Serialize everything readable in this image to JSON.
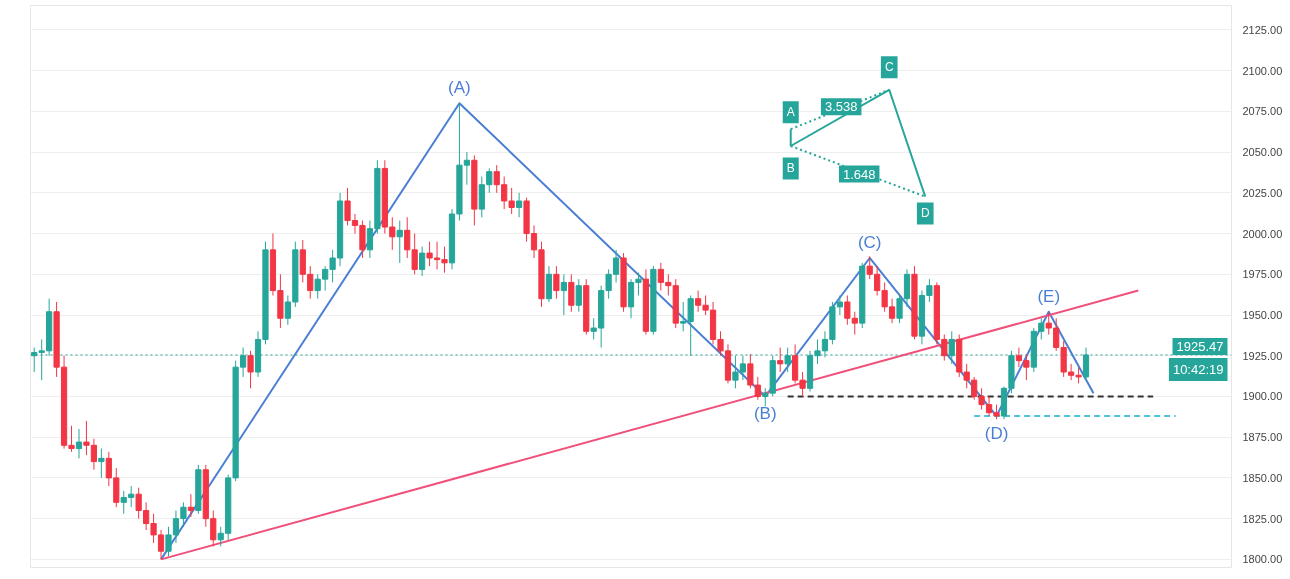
{
  "chart_data": {
    "type": "candlestick",
    "categories": [
      null,
      null,
      null,
      null,
      null,
      null,
      null,
      null,
      null,
      null,
      null,
      null,
      null,
      null,
      null,
      null,
      null,
      null,
      null,
      null,
      null,
      null,
      null,
      null,
      null,
      null,
      null,
      null,
      null,
      null,
      null,
      null,
      null,
      null,
      null,
      null,
      null,
      null,
      null,
      null,
      null,
      null,
      null,
      null,
      null,
      null,
      null,
      null,
      null,
      null,
      null,
      null,
      null,
      null,
      null,
      null,
      null,
      null,
      null,
      null,
      null,
      null,
      null,
      null,
      null,
      null,
      null,
      null,
      null,
      null,
      null,
      null,
      null,
      null,
      null,
      null,
      null,
      null,
      null,
      null,
      null,
      null,
      null,
      null,
      null,
      null,
      null,
      null,
      null,
      null,
      null,
      null,
      null,
      null,
      null,
      null,
      null,
      null,
      null,
      null,
      null,
      null,
      null,
      null,
      null,
      null,
      null,
      null,
      null,
      null,
      null,
      null,
      null,
      null,
      null,
      null,
      null,
      null,
      null,
      null,
      null,
      null,
      null,
      null,
      null,
      null,
      null,
      null,
      null,
      null,
      null,
      null,
      null,
      null,
      null,
      null,
      null,
      null,
      null,
      null,
      null,
      null,
      null,
      null,
      null,
      null,
      null,
      null,
      null,
      null,
      null,
      null,
      null,
      null,
      null,
      null,
      null,
      null,
      null,
      null,
      null
    ],
    "ohlc": [
      [
        1925,
        1930,
        1915,
        1927
      ],
      [
        1927,
        1935,
        1910,
        1928
      ],
      [
        1928,
        1960,
        1925,
        1952
      ],
      [
        1952,
        1958,
        1912,
        1918
      ],
      [
        1918,
        1925,
        1868,
        1870
      ],
      [
        1870,
        1882,
        1866,
        1868
      ],
      [
        1868,
        1880,
        1862,
        1872
      ],
      [
        1872,
        1885,
        1864,
        1870
      ],
      [
        1870,
        1874,
        1855,
        1860
      ],
      [
        1860,
        1868,
        1850,
        1862
      ],
      [
        1862,
        1866,
        1845,
        1850
      ],
      [
        1850,
        1856,
        1832,
        1835
      ],
      [
        1835,
        1842,
        1828,
        1838
      ],
      [
        1838,
        1845,
        1832,
        1840
      ],
      [
        1840,
        1844,
        1825,
        1830
      ],
      [
        1830,
        1835,
        1818,
        1822
      ],
      [
        1822,
        1828,
        1810,
        1815
      ],
      [
        1815,
        1818,
        1800,
        1805
      ],
      [
        1805,
        1820,
        1802,
        1815
      ],
      [
        1815,
        1830,
        1810,
        1825
      ],
      [
        1825,
        1835,
        1820,
        1832
      ],
      [
        1832,
        1840,
        1826,
        1830
      ],
      [
        1830,
        1858,
        1828,
        1855
      ],
      [
        1855,
        1858,
        1820,
        1825
      ],
      [
        1825,
        1830,
        1808,
        1812
      ],
      [
        1812,
        1820,
        1808,
        1816
      ],
      [
        1816,
        1852,
        1812,
        1850
      ],
      [
        1850,
        1922,
        1848,
        1918
      ],
      [
        1918,
        1930,
        1912,
        1925
      ],
      [
        1925,
        1928,
        1905,
        1915
      ],
      [
        1915,
        1940,
        1912,
        1935
      ],
      [
        1935,
        1995,
        1932,
        1990
      ],
      [
        1990,
        2000,
        1962,
        1965
      ],
      [
        1965,
        1975,
        1942,
        1948
      ],
      [
        1948,
        1962,
        1944,
        1958
      ],
      [
        1958,
        1995,
        1955,
        1990
      ],
      [
        1990,
        1996,
        1970,
        1975
      ],
      [
        1975,
        1980,
        1960,
        1965
      ],
      [
        1965,
        1975,
        1960,
        1972
      ],
      [
        1972,
        1980,
        1965,
        1978
      ],
      [
        1978,
        1990,
        1970,
        1985
      ],
      [
        1985,
        2025,
        1980,
        2020
      ],
      [
        2020,
        2028,
        2005,
        2008
      ],
      [
        2008,
        2012,
        2000,
        2005
      ],
      [
        2005,
        2008,
        1985,
        1990
      ],
      [
        1990,
        2008,
        1985,
        2003
      ],
      [
        2003,
        2045,
        2000,
        2040
      ],
      [
        2040,
        2045,
        2000,
        2004
      ],
      [
        2004,
        2010,
        1990,
        1998
      ],
      [
        1998,
        2008,
        1982,
        2002
      ],
      [
        2002,
        2010,
        1985,
        1990
      ],
      [
        1990,
        2000,
        1975,
        1978
      ],
      [
        1978,
        1992,
        1974,
        1988
      ],
      [
        1988,
        1995,
        1980,
        1985
      ],
      [
        1985,
        1995,
        1978,
        1984
      ],
      [
        1984,
        1992,
        1976,
        1982
      ],
      [
        1982,
        2015,
        1978,
        2012
      ],
      [
        2012,
        2080,
        2008,
        2042
      ],
      [
        2042,
        2050,
        2030,
        2045
      ],
      [
        2045,
        2048,
        2005,
        2015
      ],
      [
        2015,
        2035,
        2010,
        2030
      ],
      [
        2030,
        2040,
        2025,
        2038
      ],
      [
        2038,
        2042,
        2025,
        2030
      ],
      [
        2030,
        2035,
        2015,
        2020
      ],
      [
        2020,
        2028,
        2012,
        2016
      ],
      [
        2016,
        2025,
        2010,
        2020
      ],
      [
        2020,
        2022,
        1995,
        2000
      ],
      [
        2000,
        2005,
        1985,
        1990
      ],
      [
        1990,
        1995,
        1955,
        1960
      ],
      [
        1960,
        1980,
        1958,
        1975
      ],
      [
        1975,
        1980,
        1960,
        1965
      ],
      [
        1965,
        1975,
        1950,
        1970
      ],
      [
        1970,
        1975,
        1952,
        1956
      ],
      [
        1956,
        1972,
        1952,
        1968
      ],
      [
        1968,
        1972,
        1938,
        1940
      ],
      [
        1940,
        1948,
        1935,
        1942
      ],
      [
        1942,
        1968,
        1930,
        1965
      ],
      [
        1965,
        1978,
        1960,
        1975
      ],
      [
        1975,
        1990,
        1970,
        1985
      ],
      [
        1985,
        1988,
        1952,
        1955
      ],
      [
        1955,
        1972,
        1948,
        1970
      ],
      [
        1970,
        1976,
        1962,
        1972
      ],
      [
        1972,
        1978,
        1938,
        1940
      ],
      [
        1940,
        1980,
        1938,
        1978
      ],
      [
        1978,
        1982,
        1965,
        1970
      ],
      [
        1970,
        1975,
        1962,
        1968
      ],
      [
        1968,
        1972,
        1942,
        1945
      ],
      [
        1945,
        1958,
        1940,
        1946
      ],
      [
        1946,
        1962,
        1925,
        1960
      ],
      [
        1960,
        1965,
        1952,
        1956
      ],
      [
        1956,
        1962,
        1950,
        1953
      ],
      [
        1953,
        1958,
        1932,
        1935
      ],
      [
        1935,
        1940,
        1925,
        1928
      ],
      [
        1928,
        1932,
        1908,
        1910
      ],
      [
        1910,
        1925,
        1905,
        1915
      ],
      [
        1915,
        1925,
        1910,
        1920
      ],
      [
        1920,
        1926,
        1905,
        1907
      ],
      [
        1907,
        1912,
        1898,
        1900
      ],
      [
        1900,
        1905,
        1894,
        1902
      ],
      [
        1902,
        1925,
        1900,
        1922
      ],
      [
        1922,
        1930,
        1915,
        1920
      ],
      [
        1920,
        1930,
        1915,
        1925
      ],
      [
        1925,
        1932,
        1908,
        1910
      ],
      [
        1910,
        1915,
        1900,
        1905
      ],
      [
        1905,
        1928,
        1903,
        1925
      ],
      [
        1925,
        1935,
        1920,
        1928
      ],
      [
        1928,
        1940,
        1924,
        1935
      ],
      [
        1935,
        1958,
        1932,
        1955
      ],
      [
        1955,
        1962,
        1950,
        1958
      ],
      [
        1958,
        1962,
        1944,
        1948
      ],
      [
        1948,
        1952,
        1938,
        1945
      ],
      [
        1945,
        1982,
        1942,
        1980
      ],
      [
        1980,
        1986,
        1972,
        1975
      ],
      [
        1975,
        1980,
        1962,
        1965
      ],
      [
        1965,
        1970,
        1952,
        1955
      ],
      [
        1955,
        1960,
        1945,
        1948
      ],
      [
        1948,
        1962,
        1945,
        1960
      ],
      [
        1960,
        1978,
        1955,
        1975
      ],
      [
        1975,
        1980,
        1935,
        1937
      ],
      [
        1937,
        1965,
        1932,
        1962
      ],
      [
        1962,
        1972,
        1958,
        1968
      ],
      [
        1968,
        1970,
        1932,
        1935
      ],
      [
        1935,
        1938,
        1922,
        1925
      ],
      [
        1925,
        1940,
        1920,
        1935
      ],
      [
        1935,
        1938,
        1912,
        1915
      ],
      [
        1915,
        1920,
        1905,
        1910
      ],
      [
        1910,
        1912,
        1898,
        1900
      ],
      [
        1900,
        1905,
        1892,
        1895
      ],
      [
        1895,
        1900,
        1888,
        1890
      ],
      [
        1890,
        1895,
        1886,
        1888
      ],
      [
        1888,
        1906,
        1886,
        1905
      ],
      [
        1905,
        1928,
        1902,
        1925
      ],
      [
        1925,
        1930,
        1918,
        1922
      ],
      [
        1922,
        1926,
        1910,
        1918
      ],
      [
        1918,
        1942,
        1915,
        1940
      ],
      [
        1940,
        1948,
        1935,
        1945
      ],
      [
        1945,
        1952,
        1938,
        1942
      ],
      [
        1942,
        1948,
        1928,
        1930
      ],
      [
        1930,
        1934,
        1912,
        1915
      ],
      [
        1915,
        1920,
        1910,
        1913
      ],
      [
        1913,
        1918,
        1908,
        1912
      ],
      [
        1912,
        1930,
        1910,
        1925.47
      ],
      null,
      null,
      null,
      null,
      null,
      null,
      null,
      null,
      null,
      null,
      null,
      null,
      null,
      null,
      null,
      null,
      null,
      null,
      null
    ],
    "series": [
      {
        "type": "line",
        "color": "#4a7fd4",
        "values": [
          null,
          null,
          null,
          null,
          null,
          null,
          null,
          null,
          null,
          null,
          null,
          null,
          null,
          null,
          null,
          null,
          null,
          1800,
          null,
          null,
          null,
          null,
          null,
          null,
          null,
          null,
          null,
          null,
          null,
          null,
          null,
          null,
          null,
          null,
          null,
          null,
          null,
          null,
          null,
          null,
          null,
          null,
          null,
          null,
          null,
          null,
          null,
          null,
          null,
          null,
          null,
          null,
          null,
          null,
          null,
          null,
          null,
          2080,
          null,
          null,
          null,
          null,
          null,
          null,
          null,
          null,
          null,
          null,
          null,
          null,
          null,
          null,
          null,
          null,
          null,
          null,
          null,
          null,
          null,
          null,
          null,
          null,
          null,
          null,
          null,
          null,
          null,
          null,
          null,
          null,
          null,
          null,
          null,
          null,
          null,
          null,
          null,
          null,
          1900,
          null,
          null,
          null,
          null,
          null,
          null,
          null,
          null,
          null,
          null,
          null,
          null,
          null,
          1985,
          null,
          null,
          null,
          null,
          null,
          null,
          null,
          null,
          null,
          null,
          null,
          null,
          null,
          null,
          null,
          null,
          1888,
          null,
          null,
          null,
          null,
          null,
          null,
          1952,
          null,
          null,
          null,
          null,
          null,
          1902,
          null,
          null,
          null,
          null,
          null,
          null,
          null,
          null,
          null,
          null,
          null,
          null,
          null,
          null,
          null,
          null,
          null,
          null
        ],
        "value_labels": [
          null,
          null,
          null,
          null,
          null,
          null,
          null,
          null,
          null,
          null,
          null,
          null,
          null,
          null,
          null,
          null,
          null,
          null,
          null,
          null,
          null,
          null,
          null,
          null,
          null,
          null,
          null,
          null,
          null,
          null,
          null,
          null,
          null,
          null,
          null,
          null,
          null,
          null,
          null,
          null,
          null,
          null,
          null,
          null,
          null,
          null,
          null,
          null,
          null,
          null,
          null,
          null,
          null,
          null,
          null,
          null,
          null,
          "(A)",
          null,
          null,
          null,
          null,
          null,
          null,
          null,
          null,
          null,
          null,
          null,
          null,
          null,
          null,
          null,
          null,
          null,
          null,
          null,
          null,
          null,
          null,
          null,
          null,
          null,
          null,
          null,
          null,
          null,
          null,
          null,
          null,
          null,
          null,
          null,
          null,
          null,
          null,
          null,
          null,
          "(B)",
          null,
          null,
          null,
          null,
          null,
          null,
          null,
          null,
          null,
          null,
          null,
          null,
          null,
          "(C)",
          null,
          null,
          null,
          null,
          null,
          null,
          null,
          null,
          null,
          null,
          null,
          null,
          null,
          null,
          null,
          null,
          "(D)",
          null,
          null,
          null,
          null,
          null,
          null,
          "(E)",
          null,
          null,
          null,
          null,
          null,
          null,
          null,
          null,
          null,
          null,
          null,
          null,
          null,
          null,
          null,
          null,
          null,
          null,
          null,
          null,
          null,
          null,
          null,
          null
        ]
      },
      {
        "type": "line",
        "color": "#f0507a",
        "values": [
          null,
          null,
          null,
          null,
          null,
          null,
          null,
          null,
          null,
          null,
          null,
          null,
          null,
          null,
          null,
          null,
          null,
          1800,
          null,
          null,
          null,
          null,
          null,
          null,
          null,
          null,
          null,
          null,
          null,
          null,
          null,
          null,
          null,
          null,
          null,
          null,
          null,
          null,
          null,
          null,
          null,
          null,
          null,
          null,
          null,
          null,
          null,
          null,
          null,
          null,
          null,
          null,
          null,
          null,
          null,
          null,
          null,
          null,
          null,
          null,
          null,
          null,
          null,
          null,
          null,
          null,
          null,
          null,
          null,
          null,
          null,
          null,
          null,
          null,
          null,
          null,
          null,
          null,
          null,
          null,
          null,
          null,
          null,
          null,
          null,
          null,
          null,
          null,
          null,
          null,
          null,
          null,
          null,
          null,
          null,
          null,
          null,
          null,
          null,
          null,
          null,
          null,
          null,
          null,
          null,
          null,
          null,
          null,
          null,
          null,
          null,
          null,
          null,
          null,
          null,
          null,
          null,
          null,
          null,
          null,
          null,
          null,
          null,
          null,
          null,
          null,
          null,
          null,
          null,
          null,
          null,
          null,
          null,
          null,
          null,
          null,
          null,
          null,
          null,
          null,
          null,
          null,
          null,
          null,
          null,
          null,
          null,
          null,
          1965,
          null,
          null,
          null,
          null,
          null,
          null,
          null,
          null,
          null,
          null,
          null,
          null
        ]
      },
      {
        "type": "line",
        "color": "#333333",
        "line_style": "dashed",
        "values": [
          null,
          null,
          null,
          null,
          null,
          null,
          null,
          null,
          null,
          null,
          null,
          null,
          null,
          null,
          null,
          null,
          null,
          null,
          null,
          null,
          null,
          null,
          null,
          null,
          null,
          null,
          null,
          null,
          null,
          null,
          null,
          null,
          null,
          null,
          null,
          null,
          null,
          null,
          null,
          null,
          null,
          null,
          null,
          null,
          null,
          null,
          null,
          null,
          null,
          null,
          null,
          null,
          null,
          null,
          null,
          null,
          null,
          null,
          null,
          null,
          null,
          null,
          null,
          null,
          null,
          null,
          null,
          null,
          null,
          null,
          null,
          null,
          null,
          null,
          null,
          null,
          null,
          null,
          null,
          null,
          null,
          null,
          null,
          null,
          null,
          null,
          null,
          null,
          null,
          null,
          null,
          null,
          null,
          null,
          null,
          null,
          null,
          null,
          null,
          null,
          null,
          1900,
          null,
          null,
          null,
          null,
          null,
          null,
          null,
          null,
          null,
          null,
          null,
          null,
          null,
          null,
          null,
          null,
          null,
          null,
          null,
          null,
          null,
          null,
          null,
          null,
          null,
          null,
          null,
          null,
          null,
          null,
          null,
          null,
          null,
          null,
          null,
          null,
          null,
          null,
          null,
          null,
          null,
          null,
          null,
          null,
          null,
          null,
          null,
          null,
          1900,
          null,
          null,
          null,
          null,
          null,
          null,
          null,
          null,
          null,
          null
        ]
      },
      {
        "type": "line",
        "color": "#4fc3d9",
        "line_style": "dashed",
        "values": [
          null,
          null,
          null,
          null,
          null,
          null,
          null,
          null,
          null,
          null,
          null,
          null,
          null,
          null,
          null,
          null,
          null,
          null,
          null,
          null,
          null,
          null,
          null,
          null,
          null,
          null,
          null,
          null,
          null,
          null,
          null,
          null,
          null,
          null,
          null,
          null,
          null,
          null,
          null,
          null,
          null,
          null,
          null,
          null,
          null,
          null,
          null,
          null,
          null,
          null,
          null,
          null,
          null,
          null,
          null,
          null,
          null,
          null,
          null,
          null,
          null,
          null,
          null,
          null,
          null,
          null,
          null,
          null,
          null,
          null,
          null,
          null,
          null,
          null,
          null,
          null,
          null,
          null,
          null,
          null,
          null,
          null,
          null,
          null,
          null,
          null,
          null,
          null,
          null,
          null,
          null,
          null,
          null,
          null,
          null,
          null,
          null,
          null,
          null,
          null,
          null,
          null,
          null,
          null,
          null,
          null,
          null,
          null,
          null,
          null,
          null,
          null,
          null,
          null,
          null,
          null,
          null,
          null,
          null,
          null,
          null,
          null,
          null,
          null,
          null,
          null,
          1888,
          null,
          null,
          null,
          null,
          null,
          null,
          null,
          null,
          null,
          null,
          null,
          null,
          null,
          null,
          null,
          null,
          null,
          null,
          null,
          null,
          null,
          null,
          null,
          null,
          null,
          null,
          1888,
          null,
          null,
          null,
          null,
          null,
          null,
          null
        ]
      }
    ],
    "ylim": [
      1795,
      2140
    ],
    "yticks": [
      {
        "value": 1800,
        "label": "1800.00"
      },
      {
        "value": 1825,
        "label": "1825.00"
      },
      {
        "value": 1850,
        "label": "1850.00"
      },
      {
        "value": 1875,
        "label": "1875.00"
      },
      {
        "value": 1900,
        "label": "1900.00"
      },
      {
        "value": 1925,
        "label": "1925.00"
      },
      {
        "value": 1950,
        "label": "1950.00"
      },
      {
        "value": 1975,
        "label": "1975.00"
      },
      {
        "value": 2000,
        "label": "2000.00"
      },
      {
        "value": 2025,
        "label": "2025.00"
      },
      {
        "value": 2050,
        "label": "2050.00"
      },
      {
        "value": 2075,
        "label": "2075.00"
      },
      {
        "value": 2100,
        "label": "2100.00"
      },
      {
        "value": 2125,
        "label": "2125.00"
      }
    ],
    "ref_lines": [
      {
        "axis": "y",
        "value": 1925.47,
        "label": "1925.47",
        "color": "#26a69a",
        "line_style": "dotted"
      }
    ],
    "annotations": [
      "A",
      "B",
      "C",
      "D",
      "3.538",
      "1.648",
      "10:42:19"
    ],
    "grid": "y",
    "tick_labels": "y"
  }
}
